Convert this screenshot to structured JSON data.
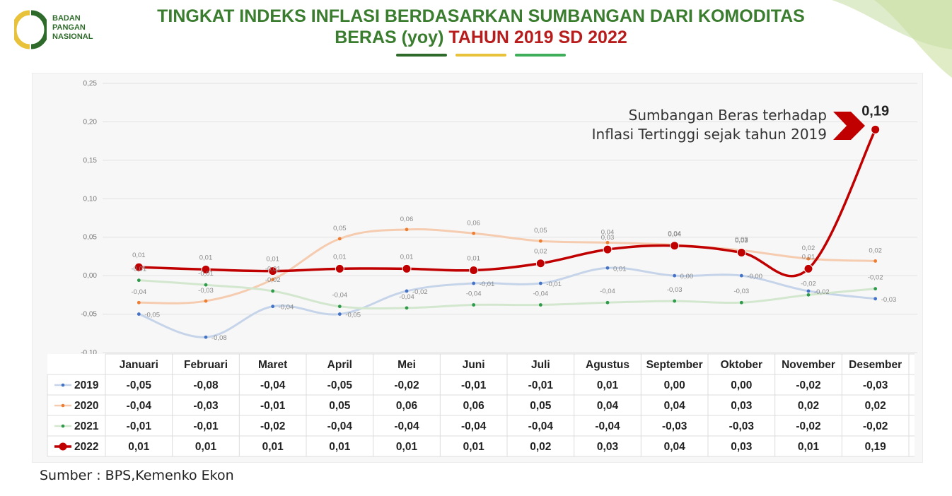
{
  "header": {
    "logo_lines": [
      "BADAN",
      "PANGAN",
      "NASIONAL"
    ],
    "title_line1": "TINGKAT INDEKS INFLASI BERDASARKAN SUMBANGAN DARI KOMODITAS",
    "title_line2_green": "BERAS (yoy)",
    "title_line2_red": "TAHUN 2019 SD 2022"
  },
  "colors": {
    "brand_green": "#3a7d2f",
    "brand_yellow": "#e8c23a",
    "light_green": "#3fae5a",
    "accent_red": "#b81d1d"
  },
  "chart_data": {
    "type": "line",
    "categories": [
      "Januari",
      "Februari",
      "Maret",
      "April",
      "Mei",
      "Juni",
      "Juli",
      "Agustus",
      "September",
      "Oktober",
      "November",
      "Desember"
    ],
    "ylim": [
      -0.1,
      0.25
    ],
    "y_ticks": [
      -0.1,
      -0.05,
      0.0,
      0.05,
      0.1,
      0.15,
      0.2,
      0.25
    ],
    "y_tick_labels": [
      "-0,10",
      "-0,05",
      "0,00",
      "0,05",
      "0,10",
      "0,15",
      "0,20",
      "0,25"
    ],
    "grid": true,
    "series": [
      {
        "name": "2019",
        "color": "#4472c4",
        "marker_color": "#4472c4",
        "line_color": "#c6d4ea",
        "emphasis": false,
        "values": [
          -0.05,
          -0.08,
          -0.04,
          -0.05,
          -0.02,
          -0.01,
          -0.01,
          0.01,
          0.0,
          0.0,
          -0.02,
          -0.03
        ],
        "labels": [
          "-0,05",
          "-0,08",
          "-0,04",
          "-0,05",
          "-0,02",
          "-0,01",
          "-0,01",
          "0,01",
          "0,00",
          "0,00",
          "-0,02",
          "-0,03"
        ],
        "chart_labels": [
          "-0,05",
          "-0,08",
          "-0,04",
          "-0,05",
          "-0,02",
          "-0,01",
          "-0,01",
          "0,01",
          "0,00",
          "-0,00",
          "-0,02",
          "-0,03"
        ]
      },
      {
        "name": "2020",
        "color": "#ed7d31",
        "marker_color": "#ed7d31",
        "line_color": "#f6ccb0",
        "emphasis": false,
        "values": [
          -0.035,
          -0.033,
          -0.005,
          0.048,
          0.06,
          0.055,
          0.045,
          0.043,
          0.04,
          0.033,
          0.022,
          0.019
        ],
        "labels": [
          "-0,04",
          "-0,03",
          "-0,01",
          "0,05",
          "0,06",
          "0,06",
          "0,05",
          "0,04",
          "0,04",
          "0,03",
          "0,02",
          "0,02"
        ],
        "chart_labels": [
          "-0,04",
          "-0,03",
          "-0,01",
          "0,05",
          "0,06",
          "0,06",
          "0,05",
          "0,04",
          "0,04",
          "0,03",
          "0,02",
          "0,02"
        ]
      },
      {
        "name": "2021",
        "color": "#70ad47",
        "marker_color": "#2e9a4a",
        "line_color": "#d3e7cf",
        "emphasis": false,
        "values": [
          -0.006,
          -0.012,
          -0.02,
          -0.04,
          -0.042,
          -0.038,
          -0.038,
          -0.035,
          -0.033,
          -0.035,
          -0.025,
          -0.017
        ],
        "labels": [
          "-0,01",
          "-0,01",
          "-0,02",
          "-0,04",
          "-0,04",
          "-0,04",
          "-0,04",
          "-0,04",
          "-0,03",
          "-0,03",
          "-0,02",
          "-0,02"
        ],
        "chart_labels": [
          "-0,01",
          "-0,01",
          "-0,02",
          "-0,04",
          "-0,04",
          "-0,04",
          "-0,04",
          "-0,04",
          "-0,03",
          "-0,03",
          "-0,02",
          "-0,02"
        ]
      },
      {
        "name": "2022",
        "color": "#c00000",
        "marker_color": "#c00000",
        "line_color": "#c00000",
        "emphasis": true,
        "values": [
          0.011,
          0.008,
          0.006,
          0.009,
          0.009,
          0.007,
          0.016,
          0.034,
          0.039,
          0.03,
          0.009,
          0.19
        ],
        "labels": [
          "0,01",
          "0,01",
          "0,01",
          "0,01",
          "0,01",
          "0,01",
          "0,02",
          "0,03",
          "0,04",
          "0,03",
          "0,01",
          "0,19"
        ],
        "chart_labels": [
          "0,01",
          "0,01",
          "0,01",
          "0,01",
          "0,01",
          "0,01",
          "0,02",
          "0,03",
          "0,04",
          "0,03",
          "0,01",
          "0,19"
        ]
      }
    ],
    "annotation": {
      "line1": "Sumbangan Beras terhadap",
      "line2": "Inflasi Tertinggi sejak tahun 2019",
      "value": "0,19"
    }
  },
  "source": "Sumber : BPS,Kemenko Ekon"
}
